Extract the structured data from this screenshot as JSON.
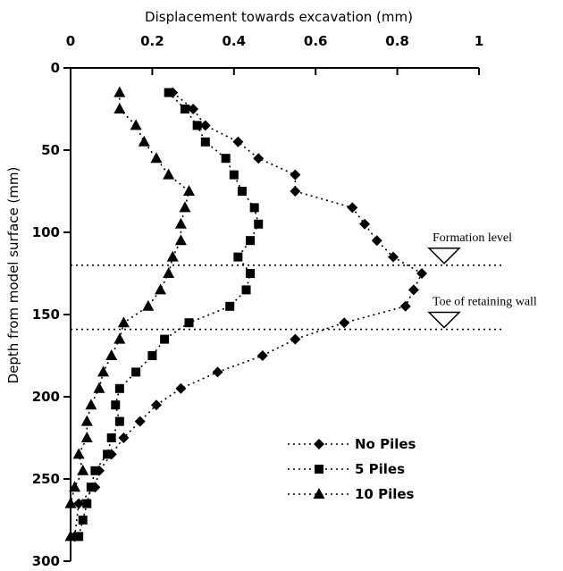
{
  "chart_data": {
    "type": "scatter",
    "xlabel": "Displacement towards excavation (mm)",
    "ylabel": "Depth from model surface (mm)",
    "x_axis_position": "top",
    "y_axis_inverted": true,
    "xlim": [
      0,
      1
    ],
    "ylim": [
      0,
      300
    ],
    "x_ticks": [
      {
        "value": 0,
        "label": "0"
      },
      {
        "value": 0.2,
        "label": "0.2"
      },
      {
        "value": 0.4,
        "label": "0.4"
      },
      {
        "value": 0.6,
        "label": "0.6"
      },
      {
        "value": 0.8,
        "label": "0.8"
      },
      {
        "value": 1,
        "label": "1"
      }
    ],
    "y_ticks": [
      {
        "value": 0,
        "label": "0"
      },
      {
        "value": 50,
        "label": "50"
      },
      {
        "value": 100,
        "label": "100"
      },
      {
        "value": 150,
        "label": "150"
      },
      {
        "value": 200,
        "label": "200"
      },
      {
        "value": 250,
        "label": "250"
      },
      {
        "value": 300,
        "label": "300"
      }
    ],
    "grid": false,
    "legend_position": "bottom-right",
    "series": [
      {
        "name": "No Piles",
        "marker": "diamond",
        "line": "dotted",
        "points": [
          {
            "x": 0.25,
            "y": 15
          },
          {
            "x": 0.3,
            "y": 25
          },
          {
            "x": 0.33,
            "y": 35
          },
          {
            "x": 0.41,
            "y": 45
          },
          {
            "x": 0.46,
            "y": 55
          },
          {
            "x": 0.55,
            "y": 65
          },
          {
            "x": 0.55,
            "y": 75
          },
          {
            "x": 0.69,
            "y": 85
          },
          {
            "x": 0.72,
            "y": 95
          },
          {
            "x": 0.75,
            "y": 105
          },
          {
            "x": 0.79,
            "y": 115
          },
          {
            "x": 0.86,
            "y": 125
          },
          {
            "x": 0.84,
            "y": 135
          },
          {
            "x": 0.82,
            "y": 145
          },
          {
            "x": 0.67,
            "y": 155
          },
          {
            "x": 0.55,
            "y": 165
          },
          {
            "x": 0.47,
            "y": 175
          },
          {
            "x": 0.36,
            "y": 185
          },
          {
            "x": 0.27,
            "y": 195
          },
          {
            "x": 0.21,
            "y": 205
          },
          {
            "x": 0.17,
            "y": 215
          },
          {
            "x": 0.13,
            "y": 225
          },
          {
            "x": 0.1,
            "y": 235
          },
          {
            "x": 0.07,
            "y": 245
          },
          {
            "x": 0.06,
            "y": 255
          },
          {
            "x": 0.02,
            "y": 265
          },
          {
            "x": 0.01,
            "y": 285
          }
        ]
      },
      {
        "name": "5 Piles",
        "marker": "square",
        "line": "dotted",
        "points": [
          {
            "x": 0.24,
            "y": 15
          },
          {
            "x": 0.28,
            "y": 25
          },
          {
            "x": 0.31,
            "y": 35
          },
          {
            "x": 0.33,
            "y": 45
          },
          {
            "x": 0.38,
            "y": 55
          },
          {
            "x": 0.4,
            "y": 65
          },
          {
            "x": 0.42,
            "y": 75
          },
          {
            "x": 0.45,
            "y": 85
          },
          {
            "x": 0.46,
            "y": 95
          },
          {
            "x": 0.44,
            "y": 105
          },
          {
            "x": 0.41,
            "y": 115
          },
          {
            "x": 0.44,
            "y": 125
          },
          {
            "x": 0.43,
            "y": 135
          },
          {
            "x": 0.39,
            "y": 145
          },
          {
            "x": 0.29,
            "y": 155
          },
          {
            "x": 0.23,
            "y": 165
          },
          {
            "x": 0.2,
            "y": 175
          },
          {
            "x": 0.16,
            "y": 185
          },
          {
            "x": 0.12,
            "y": 195
          },
          {
            "x": 0.11,
            "y": 205
          },
          {
            "x": 0.12,
            "y": 215
          },
          {
            "x": 0.1,
            "y": 225
          },
          {
            "x": 0.09,
            "y": 235
          },
          {
            "x": 0.06,
            "y": 245
          },
          {
            "x": 0.05,
            "y": 255
          },
          {
            "x": 0.04,
            "y": 265
          },
          {
            "x": 0.03,
            "y": 275
          },
          {
            "x": 0.02,
            "y": 285
          }
        ]
      },
      {
        "name": "10 Piles",
        "marker": "triangle",
        "line": "dotted",
        "points": [
          {
            "x": 0.12,
            "y": 15
          },
          {
            "x": 0.12,
            "y": 25
          },
          {
            "x": 0.16,
            "y": 35
          },
          {
            "x": 0.18,
            "y": 45
          },
          {
            "x": 0.21,
            "y": 55
          },
          {
            "x": 0.24,
            "y": 65
          },
          {
            "x": 0.29,
            "y": 75
          },
          {
            "x": 0.28,
            "y": 85
          },
          {
            "x": 0.27,
            "y": 95
          },
          {
            "x": 0.27,
            "y": 105
          },
          {
            "x": 0.25,
            "y": 115
          },
          {
            "x": 0.24,
            "y": 125
          },
          {
            "x": 0.22,
            "y": 135
          },
          {
            "x": 0.19,
            "y": 145
          },
          {
            "x": 0.13,
            "y": 155
          },
          {
            "x": 0.12,
            "y": 165
          },
          {
            "x": 0.1,
            "y": 175
          },
          {
            "x": 0.08,
            "y": 185
          },
          {
            "x": 0.07,
            "y": 195
          },
          {
            "x": 0.05,
            "y": 205
          },
          {
            "x": 0.04,
            "y": 215
          },
          {
            "x": 0.04,
            "y": 225
          },
          {
            "x": 0.02,
            "y": 235
          },
          {
            "x": 0.03,
            "y": 245
          },
          {
            "x": 0.01,
            "y": 255
          },
          {
            "x": 0.0,
            "y": 265
          },
          {
            "x": 0.0,
            "y": 285
          }
        ]
      }
    ],
    "reference_lines": [
      {
        "label": "Formation level",
        "y": 120
      },
      {
        "label": "Toe of retaining wall",
        "y": 159
      }
    ]
  }
}
